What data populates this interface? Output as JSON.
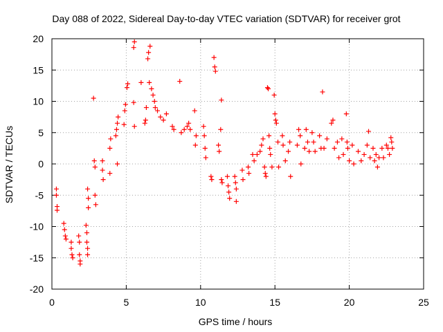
{
  "chart_data": {
    "type": "scatter",
    "title": "Day 088 of 2022, Sidereal Day-to-day VTEC variation (SDTVAR) for receiver grot",
    "xlabel": "GPS time / hours",
    "ylabel": "SDTVAR / TECUs",
    "xlim": [
      0,
      25
    ],
    "ylim": [
      -20,
      20
    ],
    "xticks": [
      0,
      5,
      10,
      15,
      20,
      25
    ],
    "yticks": [
      -20,
      -15,
      -10,
      -5,
      0,
      5,
      10,
      15,
      20
    ],
    "xtick_labels": [
      "0",
      "5",
      "10",
      "15",
      "20",
      "25"
    ],
    "ytick_labels": [
      "-20",
      "-15",
      "-10",
      "-5",
      "0",
      "5",
      "10",
      "15",
      "20"
    ],
    "grid": true,
    "marker": "plus",
    "color": "#ff0000",
    "series": [
      {
        "name": "SDTVAR",
        "points": [
          [
            0.3,
            -4.0
          ],
          [
            0.3,
            -5.0
          ],
          [
            0.35,
            -6.8
          ],
          [
            0.35,
            -7.4
          ],
          [
            0.8,
            -9.5
          ],
          [
            0.85,
            -10.5
          ],
          [
            0.9,
            -11.5
          ],
          [
            0.95,
            -12.0
          ],
          [
            1.3,
            -12.5
          ],
          [
            1.3,
            -13.5
          ],
          [
            1.35,
            -14.5
          ],
          [
            1.4,
            -15.0
          ],
          [
            1.8,
            -11.5
          ],
          [
            1.85,
            -12.5
          ],
          [
            1.85,
            -14.5
          ],
          [
            1.9,
            -15.5
          ],
          [
            1.9,
            -16.0
          ],
          [
            2.3,
            -9.8
          ],
          [
            2.35,
            -11.0
          ],
          [
            2.35,
            -12.5
          ],
          [
            2.4,
            -13.5
          ],
          [
            2.4,
            -14.5
          ],
          [
            2.4,
            -4.0
          ],
          [
            2.45,
            -5.5
          ],
          [
            2.45,
            -7.0
          ],
          [
            2.8,
            10.5
          ],
          [
            2.85,
            0.5
          ],
          [
            2.9,
            -0.5
          ],
          [
            2.9,
            -5.0
          ],
          [
            2.95,
            -6.5
          ],
          [
            3.4,
            0.5
          ],
          [
            3.4,
            -1.0
          ],
          [
            3.45,
            -2.5
          ],
          [
            3.9,
            2.5
          ],
          [
            3.95,
            4.0
          ],
          [
            3.9,
            -1.5
          ],
          [
            4.3,
            4.5
          ],
          [
            4.35,
            5.5
          ],
          [
            4.4,
            6.5
          ],
          [
            4.45,
            7.5
          ],
          [
            4.4,
            0.0
          ],
          [
            4.85,
            6.3
          ],
          [
            4.9,
            8.5
          ],
          [
            4.95,
            9.5
          ],
          [
            5.05,
            12.2
          ],
          [
            5.1,
            12.8
          ],
          [
            5.5,
            18.6
          ],
          [
            5.55,
            19.5
          ],
          [
            5.5,
            9.8
          ],
          [
            5.55,
            6.0
          ],
          [
            6.0,
            13.0
          ],
          [
            6.25,
            6.5
          ],
          [
            6.3,
            7.0
          ],
          [
            6.35,
            9.0
          ],
          [
            6.45,
            16.8
          ],
          [
            6.5,
            17.8
          ],
          [
            6.6,
            18.8
          ],
          [
            6.55,
            13.0
          ],
          [
            6.7,
            12.0
          ],
          [
            6.8,
            11.0
          ],
          [
            6.9,
            10.0
          ],
          [
            6.95,
            9.0
          ],
          [
            7.1,
            8.5
          ],
          [
            7.3,
            7.5
          ],
          [
            7.5,
            7.0
          ],
          [
            7.7,
            8.0
          ],
          [
            8.1,
            6.0
          ],
          [
            8.2,
            5.5
          ],
          [
            8.6,
            13.2
          ],
          [
            8.7,
            5.0
          ],
          [
            8.9,
            5.5
          ],
          [
            9.1,
            6.0
          ],
          [
            9.2,
            6.5
          ],
          [
            9.3,
            5.5
          ],
          [
            9.6,
            8.5
          ],
          [
            9.65,
            3.0
          ],
          [
            9.7,
            4.5
          ],
          [
            10.2,
            6.0
          ],
          [
            10.25,
            4.5
          ],
          [
            10.3,
            2.5
          ],
          [
            10.35,
            1.0
          ],
          [
            10.7,
            -2.0
          ],
          [
            10.75,
            -2.5
          ],
          [
            10.9,
            17.0
          ],
          [
            10.95,
            15.5
          ],
          [
            11.0,
            14.8
          ],
          [
            11.2,
            3.0
          ],
          [
            11.25,
            2.0
          ],
          [
            11.4,
            10.2
          ],
          [
            11.35,
            5.5
          ],
          [
            11.4,
            -2.5
          ],
          [
            11.45,
            -3.0
          ],
          [
            11.8,
            -2.0
          ],
          [
            11.85,
            -3.5
          ],
          [
            11.9,
            -4.5
          ],
          [
            11.95,
            -5.5
          ],
          [
            12.3,
            -2.0
          ],
          [
            12.35,
            -3.0
          ],
          [
            12.4,
            -4.0
          ],
          [
            12.4,
            -6.0
          ],
          [
            12.8,
            -1.0
          ],
          [
            12.85,
            -2.5
          ],
          [
            13.2,
            -0.5
          ],
          [
            13.25,
            -1.5
          ],
          [
            13.5,
            1.5
          ],
          [
            13.6,
            0.5
          ],
          [
            13.8,
            1.5
          ],
          [
            14.0,
            2.0
          ],
          [
            14.1,
            3.0
          ],
          [
            14.2,
            4.0
          ],
          [
            14.3,
            -0.5
          ],
          [
            14.35,
            -1.5
          ],
          [
            14.4,
            -2.0
          ],
          [
            14.5,
            12.2
          ],
          [
            14.55,
            12.0
          ],
          [
            14.6,
            4.5
          ],
          [
            14.65,
            2.5
          ],
          [
            14.7,
            1.5
          ],
          [
            14.8,
            -0.5
          ],
          [
            14.95,
            11.0
          ],
          [
            15.0,
            8.0
          ],
          [
            15.05,
            7.0
          ],
          [
            15.1,
            6.5
          ],
          [
            15.2,
            3.5
          ],
          [
            15.25,
            -0.5
          ],
          [
            15.5,
            4.5
          ],
          [
            15.55,
            3.0
          ],
          [
            15.7,
            0.5
          ],
          [
            15.9,
            2.0
          ],
          [
            16.0,
            3.5
          ],
          [
            16.05,
            -2.0
          ],
          [
            16.5,
            3.0
          ],
          [
            16.6,
            5.5
          ],
          [
            16.7,
            4.5
          ],
          [
            16.75,
            0.0
          ],
          [
            17.0,
            2.5
          ],
          [
            17.1,
            5.5
          ],
          [
            17.2,
            3.5
          ],
          [
            17.3,
            2.0
          ],
          [
            17.5,
            5.0
          ],
          [
            17.6,
            3.5
          ],
          [
            17.7,
            2.0
          ],
          [
            18.0,
            4.5
          ],
          [
            18.1,
            2.5
          ],
          [
            18.2,
            11.5
          ],
          [
            18.3,
            2.5
          ],
          [
            18.5,
            4.0
          ],
          [
            18.8,
            6.5
          ],
          [
            18.9,
            7.0
          ],
          [
            19.0,
            2.5
          ],
          [
            19.2,
            3.5
          ],
          [
            19.3,
            1.0
          ],
          [
            19.5,
            4.0
          ],
          [
            19.6,
            1.5
          ],
          [
            19.8,
            8.0
          ],
          [
            19.85,
            3.5
          ],
          [
            19.9,
            2.5
          ],
          [
            20.0,
            0.5
          ],
          [
            20.2,
            3.0
          ],
          [
            20.3,
            0.0
          ],
          [
            20.6,
            2.0
          ],
          [
            20.8,
            0.5
          ],
          [
            21.0,
            1.5
          ],
          [
            21.2,
            3.0
          ],
          [
            21.3,
            5.2
          ],
          [
            21.4,
            1.0
          ],
          [
            21.6,
            2.5
          ],
          [
            21.7,
            0.5
          ],
          [
            21.8,
            1.5
          ],
          [
            21.9,
            -0.5
          ],
          [
            22.0,
            1.0
          ],
          [
            22.2,
            2.5
          ],
          [
            22.3,
            1.0
          ],
          [
            22.5,
            3.0
          ],
          [
            22.6,
            2.5
          ],
          [
            22.7,
            1.5
          ],
          [
            22.8,
            4.2
          ],
          [
            22.85,
            3.5
          ],
          [
            22.9,
            2.5
          ]
        ]
      }
    ]
  }
}
